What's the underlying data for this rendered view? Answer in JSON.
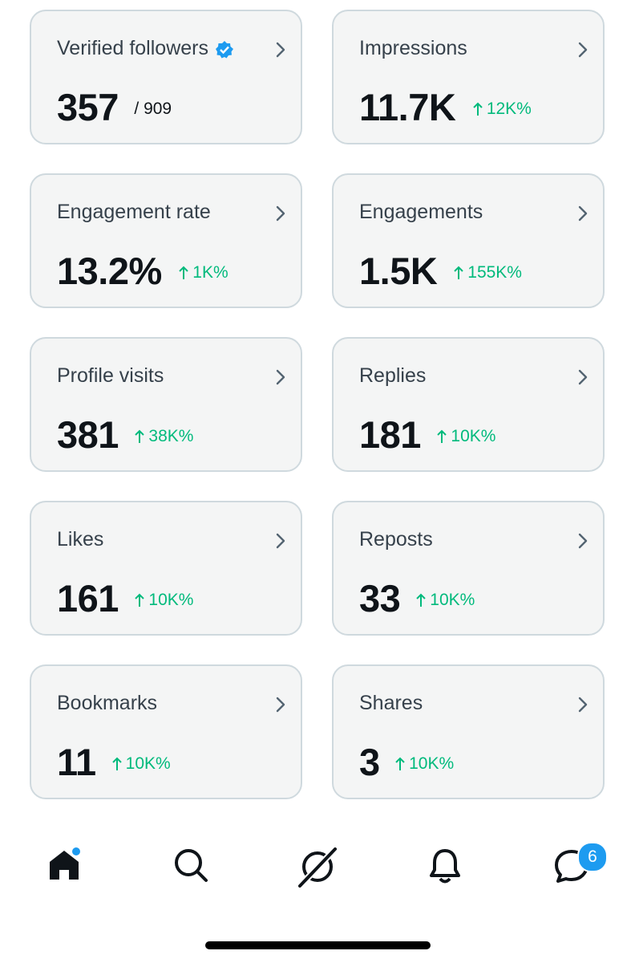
{
  "cards": [
    {
      "label": "Verified followers",
      "value": "357",
      "total": "/ 909"
    },
    {
      "label": "Impressions",
      "value": "11.7K",
      "change": "12K%"
    },
    {
      "label": "Engagement rate",
      "value": "13.2%",
      "change": "1K%"
    },
    {
      "label": "Engagements",
      "value": "1.5K",
      "change": "155K%"
    },
    {
      "label": "Profile visits",
      "value": "381",
      "change": "38K%"
    },
    {
      "label": "Replies",
      "value": "181",
      "change": "10K%"
    },
    {
      "label": "Likes",
      "value": "161",
      "change": "10K%"
    },
    {
      "label": "Reposts",
      "value": "33",
      "change": "10K%"
    },
    {
      "label": "Bookmarks",
      "value": "11",
      "change": "10K%"
    },
    {
      "label": "Shares",
      "value": "3",
      "change": "10K%"
    }
  ],
  "nav": {
    "messages_badge": "6"
  }
}
